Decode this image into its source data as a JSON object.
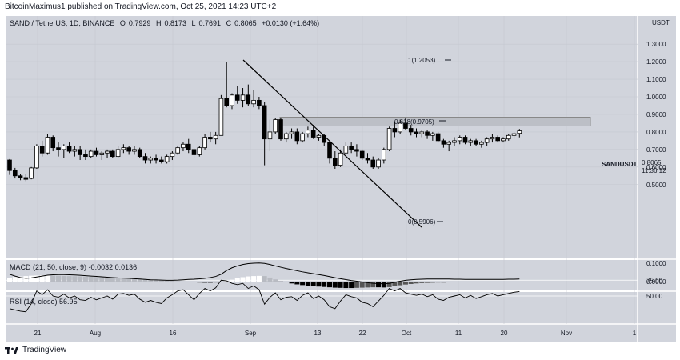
{
  "header": {
    "published_by": "BitcoinMaximus1 published on TradingView.com, Oct 25, 2021 14:23 UTC+2"
  },
  "legend": {
    "symbol_line": "SAND / TetherUS, 1D, BINANCE",
    "open_label": "O",
    "open": "0.7929",
    "high_label": "H",
    "high": "0.8173",
    "low_label": "L",
    "low": "0.7691",
    "close_label": "C",
    "close": "0.8065",
    "change": "+0.0130 (+1.64%)"
  },
  "macd_legend": {
    "label": "MACD (21, 50, close, 9)",
    "v1": "-0.0032",
    "v2": "0.0136"
  },
  "rsi_legend": {
    "label": "RSI (14, close)",
    "value": "56.95"
  },
  "price_tag": {
    "symbol": "SANDUSDT",
    "price": "0.8065",
    "countdown": "11:36:12"
  },
  "currency": "USDT",
  "footer": {
    "brand": "TradingView"
  },
  "colors": {
    "up": "#ffffff",
    "down": "#000000",
    "bg": "#d1d4dc",
    "line": "#000000",
    "rect": "#bcbfc6"
  },
  "chart_data": {
    "type": "candlestick",
    "price_axis_ticks": [
      "1.3000",
      "1.2000",
      "1.1000",
      "1.0000",
      "0.9000",
      "0.8000",
      "0.7000",
      "0.6000",
      "0.5000"
    ],
    "macd_axis_ticks": [
      "0.1000",
      "0.0000"
    ],
    "rsi_axis_ticks": [
      "75.00",
      "50.00"
    ],
    "x_ticks": [
      "21",
      "Aug",
      "16",
      "Sep",
      "13",
      "22",
      "Oct",
      "11",
      "20",
      "Nov",
      "1"
    ],
    "annotations": {
      "fib_1": "1(1.2053)",
      "fib_0618": "0.618(0.9705)",
      "fib_0": "0(0.5906)"
    },
    "candles": [
      [
        0.64,
        0.645,
        0.555,
        0.58
      ],
      [
        0.58,
        0.595,
        0.535,
        0.55
      ],
      [
        0.55,
        0.56,
        0.525,
        0.54
      ],
      [
        0.54,
        0.56,
        0.52,
        0.53
      ],
      [
        0.535,
        0.6,
        0.53,
        0.595
      ],
      [
        0.595,
        0.73,
        0.59,
        0.72
      ],
      [
        0.72,
        0.75,
        0.66,
        0.68
      ],
      [
        0.68,
        0.79,
        0.67,
        0.77
      ],
      [
        0.77,
        0.78,
        0.69,
        0.71
      ],
      [
        0.71,
        0.74,
        0.66,
        0.7
      ],
      [
        0.7,
        0.73,
        0.65,
        0.72
      ],
      [
        0.72,
        0.74,
        0.68,
        0.69
      ],
      [
        0.69,
        0.72,
        0.66,
        0.7
      ],
      [
        0.7,
        0.72,
        0.64,
        0.67
      ],
      [
        0.67,
        0.7,
        0.64,
        0.66
      ],
      [
        0.66,
        0.7,
        0.65,
        0.69
      ],
      [
        0.69,
        0.71,
        0.66,
        0.67
      ],
      [
        0.67,
        0.69,
        0.64,
        0.68
      ],
      [
        0.68,
        0.7,
        0.65,
        0.69
      ],
      [
        0.69,
        0.7,
        0.65,
        0.66
      ],
      [
        0.66,
        0.72,
        0.65,
        0.7
      ],
      [
        0.7,
        0.73,
        0.68,
        0.71
      ],
      [
        0.71,
        0.72,
        0.67,
        0.69
      ],
      [
        0.69,
        0.72,
        0.67,
        0.7
      ],
      [
        0.7,
        0.71,
        0.65,
        0.66
      ],
      [
        0.66,
        0.68,
        0.62,
        0.64
      ],
      [
        0.64,
        0.66,
        0.62,
        0.65
      ],
      [
        0.65,
        0.67,
        0.62,
        0.64
      ],
      [
        0.64,
        0.66,
        0.62,
        0.63
      ],
      [
        0.63,
        0.67,
        0.62,
        0.66
      ],
      [
        0.66,
        0.69,
        0.64,
        0.68
      ],
      [
        0.68,
        0.72,
        0.67,
        0.71
      ],
      [
        0.71,
        0.74,
        0.69,
        0.73
      ],
      [
        0.73,
        0.76,
        0.68,
        0.7
      ],
      [
        0.7,
        0.71,
        0.65,
        0.67
      ],
      [
        0.67,
        0.72,
        0.66,
        0.71
      ],
      [
        0.71,
        0.79,
        0.7,
        0.77
      ],
      [
        0.77,
        0.8,
        0.74,
        0.76
      ],
      [
        0.76,
        0.8,
        0.73,
        0.78
      ],
      [
        0.78,
        1.01,
        0.78,
        0.99
      ],
      [
        0.99,
        1.2,
        0.94,
        0.95
      ],
      [
        0.95,
        1.02,
        0.93,
        1.01
      ],
      [
        1.01,
        1.06,
        0.96,
        0.98
      ],
      [
        0.98,
        1.05,
        0.94,
        1.01
      ],
      [
        1.01,
        1.07,
        0.95,
        0.96
      ],
      [
        0.96,
        1.04,
        0.94,
        0.98
      ],
      [
        0.98,
        1.0,
        0.93,
        0.95
      ],
      [
        0.95,
        0.97,
        0.61,
        0.76
      ],
      [
        0.76,
        0.87,
        0.69,
        0.8
      ],
      [
        0.8,
        0.88,
        0.79,
        0.87
      ],
      [
        0.87,
        0.88,
        0.75,
        0.76
      ],
      [
        0.76,
        0.8,
        0.74,
        0.79
      ],
      [
        0.79,
        0.82,
        0.76,
        0.8
      ],
      [
        0.8,
        0.82,
        0.73,
        0.75
      ],
      [
        0.75,
        0.8,
        0.74,
        0.79
      ],
      [
        0.79,
        0.83,
        0.77,
        0.81
      ],
      [
        0.81,
        0.84,
        0.76,
        0.77
      ],
      [
        0.77,
        0.79,
        0.75,
        0.78
      ],
      [
        0.78,
        0.79,
        0.72,
        0.74
      ],
      [
        0.74,
        0.75,
        0.62,
        0.65
      ],
      [
        0.65,
        0.69,
        0.59,
        0.61
      ],
      [
        0.61,
        0.7,
        0.6,
        0.68
      ],
      [
        0.68,
        0.74,
        0.67,
        0.72
      ],
      [
        0.72,
        0.74,
        0.68,
        0.7
      ],
      [
        0.7,
        0.73,
        0.66,
        0.69
      ],
      [
        0.69,
        0.7,
        0.64,
        0.65
      ],
      [
        0.65,
        0.68,
        0.62,
        0.64
      ],
      [
        0.64,
        0.66,
        0.59,
        0.6
      ],
      [
        0.6,
        0.65,
        0.59,
        0.64
      ],
      [
        0.64,
        0.71,
        0.62,
        0.7
      ],
      [
        0.7,
        0.83,
        0.69,
        0.82
      ],
      [
        0.82,
        0.86,
        0.77,
        0.8
      ],
      [
        0.8,
        0.87,
        0.79,
        0.85
      ],
      [
        0.85,
        0.88,
        0.81,
        0.82
      ],
      [
        0.82,
        0.84,
        0.78,
        0.8
      ],
      [
        0.8,
        0.82,
        0.77,
        0.79
      ],
      [
        0.79,
        0.81,
        0.77,
        0.8
      ],
      [
        0.8,
        0.81,
        0.76,
        0.78
      ],
      [
        0.78,
        0.8,
        0.75,
        0.79
      ],
      [
        0.79,
        0.8,
        0.74,
        0.75
      ],
      [
        0.75,
        0.76,
        0.71,
        0.73
      ],
      [
        0.73,
        0.75,
        0.69,
        0.74
      ],
      [
        0.74,
        0.77,
        0.72,
        0.75
      ],
      [
        0.75,
        0.78,
        0.73,
        0.77
      ],
      [
        0.77,
        0.78,
        0.73,
        0.74
      ],
      [
        0.74,
        0.76,
        0.72,
        0.75
      ],
      [
        0.75,
        0.76,
        0.72,
        0.73
      ],
      [
        0.73,
        0.75,
        0.71,
        0.74
      ],
      [
        0.74,
        0.77,
        0.72,
        0.76
      ],
      [
        0.76,
        0.79,
        0.74,
        0.77
      ],
      [
        0.77,
        0.78,
        0.74,
        0.75
      ],
      [
        0.75,
        0.77,
        0.74,
        0.76
      ],
      [
        0.76,
        0.79,
        0.75,
        0.78
      ],
      [
        0.78,
        0.8,
        0.76,
        0.79
      ],
      [
        0.792,
        0.817,
        0.769,
        0.806
      ]
    ],
    "macd_hist": [
      0.02,
      0.025,
      0.028,
      0.03,
      0.032,
      0.033,
      0.034,
      0.034,
      0.033,
      0.032,
      0.031,
      0.03,
      0.029,
      0.028,
      0.027,
      0.026,
      0.025,
      0.024,
      0.023,
      0.022,
      0.021,
      0.02,
      0.019,
      0.018,
      0.016,
      0.014,
      0.012,
      0.01,
      0.008,
      0.006,
      0.004,
      0.002,
      -0.001,
      -0.003,
      -0.004,
      -0.005,
      -0.006,
      -0.006,
      -0.005,
      -0.003,
      0.002,
      0.01,
      0.018,
      0.024,
      0.028,
      0.03,
      0.031,
      0.03,
      0.022,
      0.012,
      0.004,
      -0.004,
      -0.01,
      -0.015,
      -0.019,
      -0.022,
      -0.025,
      -0.027,
      -0.029,
      -0.031,
      -0.033,
      -0.034,
      -0.035,
      -0.035,
      -0.034,
      -0.033,
      -0.032,
      -0.031,
      -0.031,
      -0.032,
      -0.03,
      -0.025,
      -0.02,
      -0.016,
      -0.013,
      -0.01,
      -0.008,
      -0.007,
      -0.006,
      -0.005,
      -0.005,
      -0.004,
      -0.004,
      -0.004,
      -0.004,
      -0.003,
      -0.003,
      -0.003,
      -0.003,
      -0.003,
      -0.003,
      -0.003,
      -0.003,
      -0.003,
      -0.003
    ],
    "macd_line": [
      0.04,
      0.03,
      0.022,
      0.018,
      0.02,
      0.025,
      0.03,
      0.035,
      0.037,
      0.038,
      0.038,
      0.037,
      0.036,
      0.034,
      0.032,
      0.03,
      0.028,
      0.026,
      0.024,
      0.022,
      0.02,
      0.019,
      0.018,
      0.016,
      0.014,
      0.012,
      0.01,
      0.009,
      0.008,
      0.007,
      0.007,
      0.008,
      0.01,
      0.012,
      0.013,
      0.015,
      0.018,
      0.022,
      0.028,
      0.04,
      0.06,
      0.075,
      0.085,
      0.093,
      0.098,
      0.1,
      0.101,
      0.099,
      0.093,
      0.085,
      0.078,
      0.071,
      0.065,
      0.059,
      0.053,
      0.048,
      0.043,
      0.038,
      0.033,
      0.027,
      0.021,
      0.016,
      0.011,
      0.006,
      0.002,
      -0.002,
      -0.006,
      -0.009,
      -0.011,
      -0.012,
      -0.01,
      -0.004,
      0.002,
      0.007,
      0.01,
      0.012,
      0.013,
      0.014,
      0.014,
      0.014,
      0.014,
      0.014,
      0.013,
      0.013,
      0.012,
      0.012,
      0.012,
      0.012,
      0.012,
      0.012,
      0.012,
      0.012,
      0.013,
      0.013,
      0.014
    ],
    "rsi": [
      30,
      28,
      26,
      25,
      38,
      58,
      52,
      60,
      50,
      48,
      53,
      47,
      50,
      44,
      43,
      48,
      44,
      47,
      50,
      45,
      53,
      54,
      51,
      53,
      45,
      40,
      43,
      40,
      38,
      47,
      52,
      58,
      60,
      52,
      44,
      54,
      62,
      58,
      63,
      75,
      74,
      70,
      68,
      70,
      62,
      66,
      60,
      37,
      48,
      55,
      44,
      48,
      49,
      43,
      51,
      55,
      46,
      50,
      44,
      33,
      30,
      42,
      52,
      49,
      47,
      40,
      38,
      33,
      42,
      51,
      62,
      58,
      62,
      55,
      53,
      51,
      53,
      49,
      52,
      45,
      43,
      48,
      50,
      52,
      47,
      51,
      46,
      49,
      52,
      54,
      50,
      52,
      54,
      56,
      57
    ]
  }
}
